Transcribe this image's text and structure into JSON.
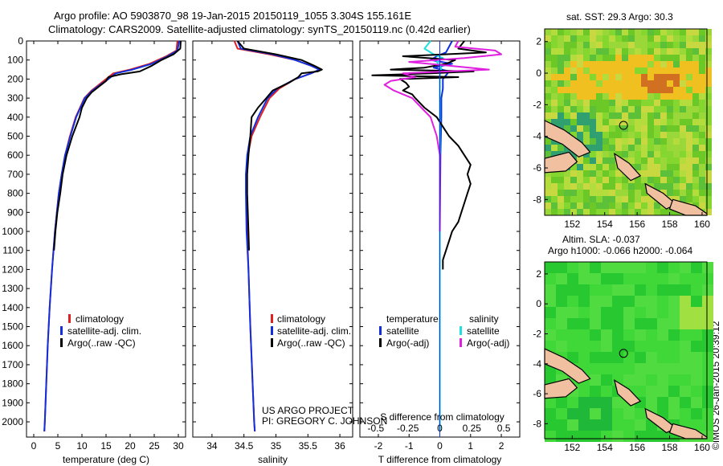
{
  "titles": {
    "line1": "Argo profile: AO 5903870_98 19-Jan-2015 20150119_1055 3.304S 155.161E",
    "line2": "Climatology: CARS2009. Satellite-adjusted climatology: synTS_20150119.nc (0.42d earlier)"
  },
  "sst_title": "sat. SST: 29.3 Argo: 30.3",
  "sla_title1": "Altim. SLA: -0.037",
  "sla_title2": "Argo h1000: -0.066 h2000: -0.064",
  "timestamp": "©IMOS 26-Jan-2015 20:39:12",
  "project": {
    "line1": "US ARGO PROJECT",
    "line2": "PI: GREGORY C. JOHNSON"
  },
  "colors": {
    "climatology": "#e02020",
    "satellite": "#1030e0",
    "argo": "#000000",
    "t_sat": "#20e0e0",
    "s_argo": "#e020e0",
    "sst_base": "#7ad02a",
    "sla_base": "#30d030",
    "land": "#f0c0a0"
  },
  "legends": {
    "left": [
      "climatology",
      "satellite-adj. clim.",
      "Argo(..raw -QC)"
    ],
    "right_headers": [
      "temperature",
      "salinity"
    ],
    "right_rows": [
      [
        "satellite",
        "satellite"
      ],
      [
        "Argo(-adj)",
        "Argo(-adj)"
      ]
    ]
  },
  "chart_data": [
    {
      "id": "temperature",
      "type": "line",
      "xlabel": "temperature (deg C)",
      "xlim": [
        -1.5,
        31.5
      ],
      "xticks": [
        0,
        5,
        10,
        15,
        20,
        25,
        30
      ],
      "ylim": [
        0,
        2080
      ],
      "yticks": [
        0,
        100,
        200,
        300,
        400,
        500,
        600,
        700,
        800,
        900,
        1000,
        1100,
        1200,
        1300,
        1400,
        1500,
        1600,
        1700,
        1800,
        1900,
        2000
      ],
      "series": [
        {
          "name": "climatology",
          "color": "#e02020",
          "depth": [
            0,
            50,
            80,
            120,
            150,
            170,
            200,
            230,
            260,
            300,
            400,
            500,
            600,
            700,
            800,
            900,
            1000,
            1200,
            1400,
            1600,
            1800,
            2000,
            2050
          ],
          "values": [
            29.8,
            29.6,
            27.5,
            24,
            20,
            16.5,
            15,
            13.5,
            12,
            10.5,
            8.7,
            7.5,
            6.5,
            5.8,
            5.2,
            4.8,
            4.4,
            3.8,
            3.3,
            2.9,
            2.6,
            2.3,
            2.2
          ]
        },
        {
          "name": "satellite-adj. clim.",
          "color": "#1030e0",
          "depth": [
            0,
            50,
            80,
            120,
            150,
            170,
            200,
            230,
            260,
            300,
            400,
            500,
            600,
            700,
            800,
            900,
            1000,
            1200,
            1400,
            1600,
            1800,
            2000,
            2050
          ],
          "values": [
            30.2,
            29.8,
            27.8,
            24.5,
            20.5,
            17,
            15.5,
            13.8,
            12.2,
            10.6,
            8.8,
            7.6,
            6.5,
            5.8,
            5.2,
            4.8,
            4.4,
            3.8,
            3.3,
            2.9,
            2.6,
            2.3,
            2.2
          ]
        },
        {
          "name": "Argo(..raw -QC)",
          "color": "#000000",
          "depth": [
            0,
            40,
            70,
            100,
            130,
            160,
            175,
            190,
            210,
            240,
            270,
            300,
            350,
            400,
            500,
            600,
            700,
            800,
            900,
            1000,
            1100
          ],
          "values": [
            30.5,
            30.4,
            29,
            26.5,
            24.5,
            22,
            18,
            15.5,
            15,
            13.5,
            12,
            11,
            10,
            9.5,
            8,
            6.8,
            6,
            5.5,
            4.9,
            4.5,
            4.2
          ]
        }
      ]
    },
    {
      "id": "salinity",
      "type": "line",
      "xlabel": "salinity",
      "xlim": [
        33.7,
        36.2
      ],
      "xticks": [
        34,
        34.5,
        35,
        35.5,
        36
      ],
      "ylim": [
        0,
        2080
      ],
      "series": [
        {
          "name": "climatology",
          "color": "#e02020",
          "depth": [
            0,
            40,
            70,
            100,
            130,
            150,
            170,
            200,
            250,
            300,
            400,
            500,
            600,
            700,
            800,
            1000,
            1200,
            1500,
            2000,
            2050
          ],
          "values": [
            34.35,
            34.4,
            34.9,
            35.3,
            35.55,
            35.68,
            35.55,
            35.3,
            35.05,
            34.9,
            34.75,
            34.62,
            34.56,
            34.54,
            34.54,
            34.55,
            34.57,
            34.6,
            34.66,
            34.67
          ]
        },
        {
          "name": "satellite-adj. clim.",
          "color": "#1030e0",
          "depth": [
            0,
            40,
            70,
            100,
            130,
            150,
            170,
            200,
            250,
            300,
            400,
            500,
            600,
            700,
            800,
            1000,
            1200,
            1500,
            2000,
            2050
          ],
          "values": [
            34.4,
            34.45,
            34.95,
            35.3,
            35.55,
            35.68,
            35.55,
            35.3,
            35.02,
            34.87,
            34.72,
            34.6,
            34.55,
            34.53,
            34.53,
            34.54,
            34.57,
            34.6,
            34.66,
            34.67
          ]
        },
        {
          "name": "Argo(..raw -QC)",
          "color": "#000000",
          "depth": [
            0,
            40,
            70,
            100,
            130,
            150,
            160,
            170,
            190,
            220,
            260,
            300,
            350,
            400,
            500,
            600,
            700,
            800,
            900,
            1000,
            1100
          ],
          "values": [
            34.4,
            34.5,
            35,
            35.4,
            35.6,
            35.72,
            35.65,
            35.4,
            35.35,
            35.2,
            34.95,
            34.85,
            34.72,
            34.62,
            34.6,
            34.57,
            34.55,
            34.55,
            34.56,
            34.57,
            34.58
          ]
        }
      ]
    },
    {
      "id": "difference",
      "type": "line",
      "xlabel": "T difference from climatology",
      "xlabel_top": "S difference from climatology",
      "xlim": [
        -2.6,
        2.6
      ],
      "xticks": [
        -2,
        -1,
        0,
        1,
        2
      ],
      "xticks_s": [
        -0.5,
        -0.25,
        0,
        0.25,
        0.5
      ],
      "ylim": [
        0,
        2080
      ],
      "series": [
        {
          "name": "temperature satellite",
          "color": "#1030e0",
          "depth": [
            0,
            30,
            60,
            80,
            100,
            120,
            140,
            160,
            180,
            200,
            250,
            300,
            400,
            600,
            800,
            1000,
            1500,
            2000,
            2050
          ],
          "values": [
            0.4,
            0.3,
            0.2,
            -0.1,
            -0.3,
            0.4,
            -0.2,
            0.3,
            0.2,
            0.1,
            0.1,
            0.05,
            0.05,
            0.02,
            0.01,
            0,
            0,
            0,
            0
          ]
        },
        {
          "name": "salinity satellite",
          "color": "#20e0e0",
          "depth": [
            0,
            40,
            70,
            90,
            110,
            140,
            180,
            250,
            400,
            600,
            800,
            1000,
            1500,
            2000,
            2050
          ],
          "values": [
            -0.3,
            -0.5,
            -0.2,
            0.1,
            -0.1,
            0.05,
            0,
            0,
            0,
            0,
            0,
            0,
            0,
            0,
            0
          ]
        },
        {
          "name": "temperature Argo(-adj)",
          "color": "#000000",
          "depth": [
            0,
            40,
            60,
            80,
            100,
            120,
            140,
            150,
            160,
            170,
            180,
            190,
            200,
            220,
            240,
            260,
            280,
            300,
            350,
            400,
            450,
            500,
            550,
            600,
            650,
            700,
            750,
            800,
            850,
            900,
            950,
            1000,
            1050,
            1100,
            1150,
            1200
          ],
          "values": [
            0.8,
            0.6,
            1.5,
            -1.2,
            0.5,
            0.2,
            -0.5,
            -1.6,
            1.1,
            -0.3,
            -2.2,
            0.6,
            -1.3,
            -1.1,
            -1.0,
            -1.2,
            -0.9,
            -0.8,
            -0.5,
            -0.1,
            0.1,
            0.3,
            0.6,
            0.8,
            1.0,
            0.9,
            1.0,
            0.9,
            0.8,
            0.7,
            0.6,
            0.4,
            0.3,
            0.2,
            0.1,
            0.1
          ]
        },
        {
          "name": "salinity Argo(-adj)",
          "color": "#e020e0",
          "depth": [
            0,
            30,
            50,
            70,
            90,
            110,
            130,
            150,
            170,
            190,
            210,
            230,
            260,
            300,
            350,
            400,
            500,
            600,
            800,
            1000
          ],
          "values": [
            0.6,
            0.5,
            1.8,
            2.0,
            0.8,
            -1.0,
            0.3,
            1.6,
            -1.2,
            -0.8,
            -1.6,
            -1.8,
            -1.5,
            -0.9,
            -0.6,
            -0.3,
            -0.1,
            0,
            0,
            0
          ]
        }
      ]
    },
    {
      "id": "sst_map",
      "type": "heatmap",
      "xticks": [
        152,
        154,
        156,
        158,
        160
      ],
      "yticks": [
        2,
        0,
        -2,
        -4,
        -6,
        -8
      ],
      "xlim": [
        150.3,
        160.3
      ],
      "ylim": [
        -9.0,
        2.8
      ],
      "float_lon": 155.161,
      "float_lat": -3.304
    },
    {
      "id": "sla_map",
      "type": "heatmap",
      "xticks": [
        152,
        154,
        156,
        158,
        160
      ],
      "yticks": [
        2,
        0,
        -2,
        -4,
        -6,
        -8
      ],
      "xlim": [
        150.3,
        160.3
      ],
      "ylim": [
        -9.0,
        2.8
      ],
      "float_lon": 155.161,
      "float_lat": -3.304
    }
  ]
}
